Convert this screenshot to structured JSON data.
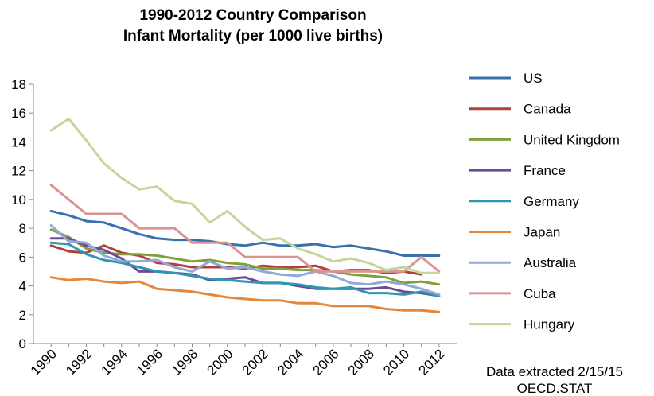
{
  "chart_data": {
    "type": "line",
    "title": [
      "1990-2012 Country Comparison",
      "Infant Mortality (per 1000 live births)"
    ],
    "xlabel": "",
    "ylabel": "",
    "ylim": [
      0,
      18
    ],
    "yticks": [
      0,
      2,
      4,
      6,
      8,
      10,
      12,
      14,
      16,
      18
    ],
    "xticks": [
      "1990",
      "1992",
      "1994",
      "1996",
      "1998",
      "2000",
      "2002",
      "2004",
      "2006",
      "2008",
      "2010",
      "2012"
    ],
    "x": [
      1990,
      1991,
      1992,
      1993,
      1994,
      1995,
      1996,
      1997,
      1998,
      1999,
      2000,
      2001,
      2002,
      2003,
      2004,
      2005,
      2006,
      2007,
      2008,
      2009,
      2010,
      2011,
      2012
    ],
    "grid": false,
    "legend_position": "right",
    "series": [
      {
        "name": "US",
        "color": "#3c6fae",
        "values": [
          9.2,
          8.9,
          8.5,
          8.4,
          8.0,
          7.6,
          7.3,
          7.2,
          7.2,
          7.1,
          6.9,
          6.8,
          7.0,
          6.8,
          6.8,
          6.9,
          6.7,
          6.8,
          6.6,
          6.4,
          6.1,
          6.1,
          6.1
        ]
      },
      {
        "name": "Canada",
        "color": "#b0403e",
        "values": [
          6.8,
          6.4,
          6.3,
          6.8,
          6.3,
          6.1,
          5.6,
          5.5,
          5.3,
          5.3,
          5.3,
          5.2,
          5.4,
          5.3,
          5.3,
          5.4,
          5.0,
          5.1,
          5.1,
          4.9,
          5.0,
          4.8,
          null
        ]
      },
      {
        "name": "United Kingdom",
        "color": "#7fa03a",
        "values": [
          7.9,
          7.4,
          6.6,
          6.3,
          6.2,
          6.2,
          6.1,
          5.9,
          5.7,
          5.8,
          5.6,
          5.5,
          5.2,
          5.2,
          5.1,
          5.1,
          5.0,
          4.8,
          4.7,
          4.6,
          4.2,
          4.3,
          4.1
        ]
      },
      {
        "name": "France",
        "color": "#6b4a96",
        "values": [
          7.3,
          7.3,
          6.8,
          6.5,
          5.9,
          5.0,
          5.0,
          4.9,
          4.8,
          4.4,
          4.5,
          4.6,
          4.2,
          4.2,
          4.0,
          3.8,
          3.8,
          3.8,
          3.8,
          3.9,
          3.6,
          3.5,
          3.3
        ]
      },
      {
        "name": "Germany",
        "color": "#2e98b0",
        "values": [
          7.0,
          6.9,
          6.2,
          5.8,
          5.6,
          5.3,
          5.0,
          4.9,
          4.7,
          4.5,
          4.4,
          4.3,
          4.2,
          4.2,
          4.1,
          3.9,
          3.8,
          3.9,
          3.5,
          3.5,
          3.4,
          3.6,
          3.3
        ]
      },
      {
        "name": "Japan",
        "color": "#e5873b",
        "values": [
          4.6,
          4.4,
          4.5,
          4.3,
          4.2,
          4.3,
          3.8,
          3.7,
          3.6,
          3.4,
          3.2,
          3.1,
          3.0,
          3.0,
          2.8,
          2.8,
          2.6,
          2.6,
          2.6,
          2.4,
          2.3,
          2.3,
          2.2
        ]
      },
      {
        "name": "Australia",
        "color": "#92a8d8",
        "values": [
          8.2,
          7.1,
          7.0,
          6.1,
          5.7,
          5.7,
          5.8,
          5.3,
          5.0,
          5.7,
          5.2,
          5.3,
          5.0,
          4.8,
          4.7,
          5.0,
          4.7,
          4.2,
          4.1,
          4.3,
          4.1,
          3.8,
          3.4
        ]
      },
      {
        "name": "Cuba",
        "color": "#d99594",
        "values": [
          11.0,
          10.0,
          9.0,
          9.0,
          9.0,
          8.0,
          8.0,
          8.0,
          7.0,
          7.0,
          7.0,
          6.0,
          6.0,
          6.0,
          6.0,
          5.0,
          5.0,
          5.0,
          5.0,
          5.0,
          5.0,
          6.0,
          5.0
        ]
      },
      {
        "name": "Hungary",
        "color": "#c3d69b",
        "values": [
          14.8,
          15.6,
          14.1,
          12.5,
          11.5,
          10.7,
          10.9,
          9.9,
          9.7,
          8.4,
          9.2,
          8.1,
          7.2,
          7.3,
          6.6,
          6.2,
          5.7,
          5.9,
          5.6,
          5.1,
          5.3,
          4.9,
          4.9
        ]
      }
    ],
    "notes": [
      "Data extracted 2/15/15",
      "OECD.STAT"
    ]
  }
}
